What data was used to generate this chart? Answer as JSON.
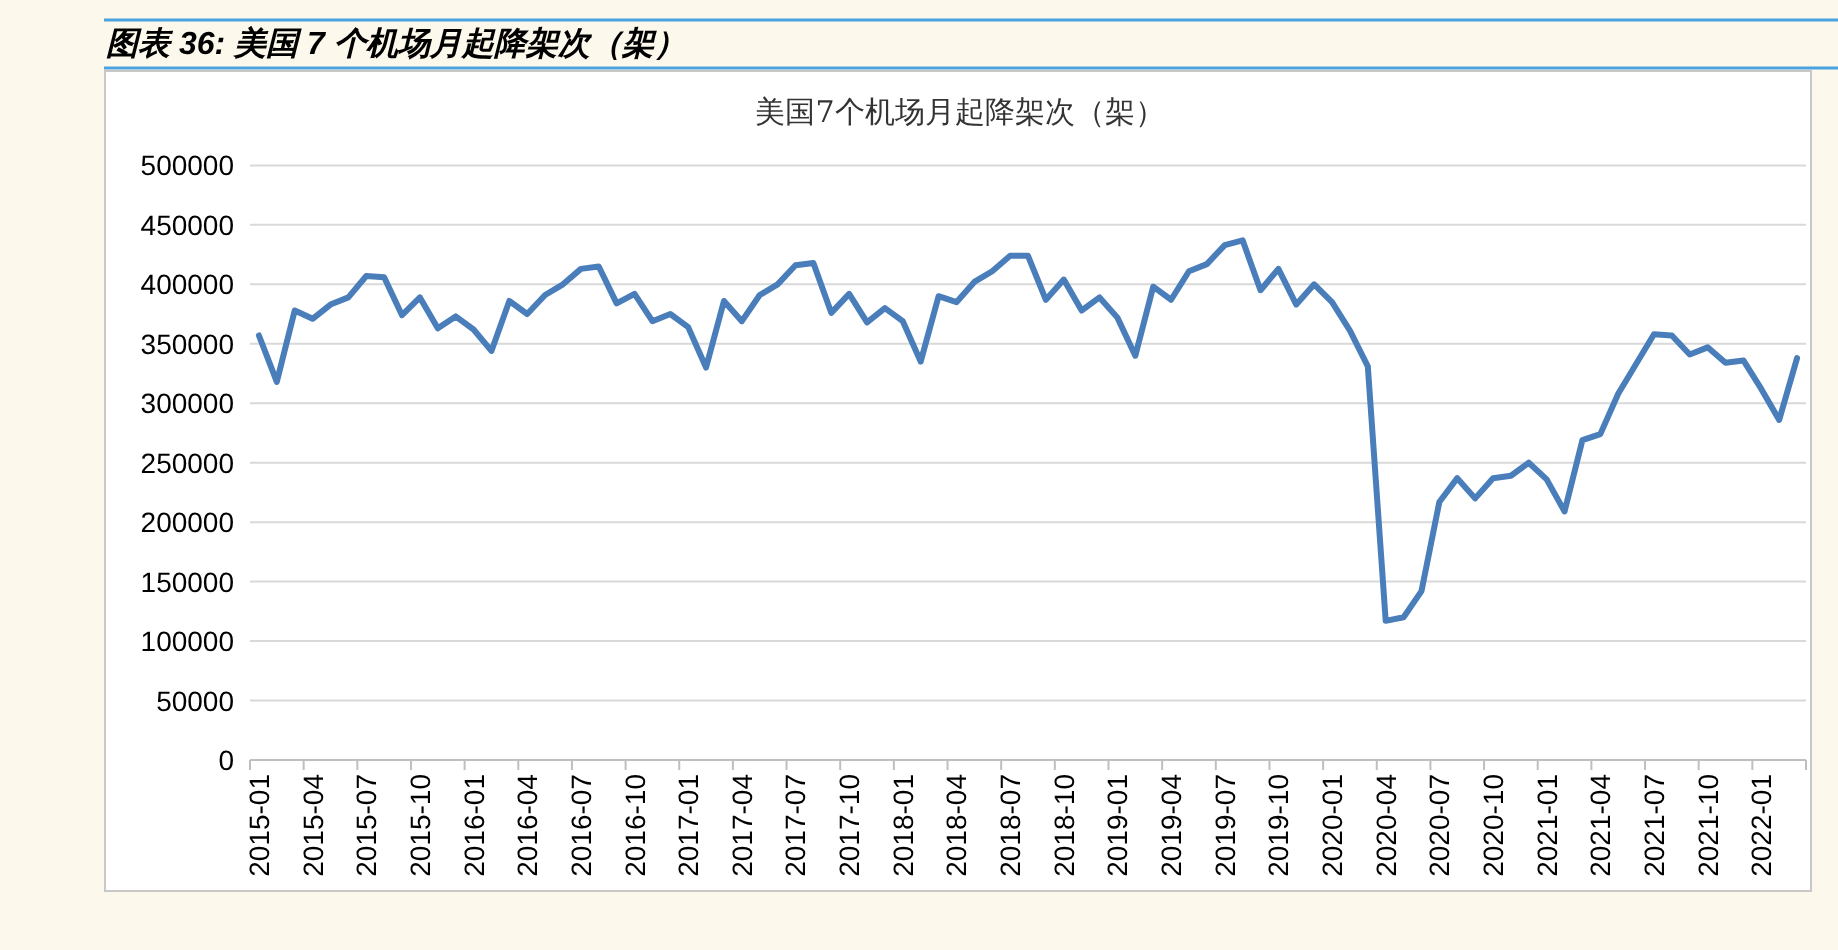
{
  "chart_data": {
    "type": "line",
    "title": "图表 36: 美国 7 个机场月起降架次（架）",
    "subtitle": "美国7个机场月起降架次（架）",
    "categories": [
      "2015-01",
      null,
      null,
      "2015-04",
      null,
      null,
      "2015-07",
      null,
      null,
      "2015-10",
      null,
      null,
      "2016-01",
      null,
      null,
      "2016-04",
      null,
      null,
      "2016-07",
      null,
      null,
      "2016-10",
      null,
      null,
      "2017-01",
      null,
      null,
      "2017-04",
      null,
      null,
      "2017-07",
      null,
      null,
      "2017-10",
      null,
      null,
      "2018-01",
      null,
      null,
      "2018-04",
      null,
      null,
      "2018-07",
      null,
      null,
      "2018-10",
      null,
      null,
      "2019-01",
      null,
      null,
      "2019-04",
      null,
      null,
      "2019-07",
      null,
      null,
      "2019-10",
      null,
      null,
      "2020-01",
      null,
      null,
      "2020-04",
      null,
      null,
      "2020-07",
      null,
      null,
      "2020-10",
      null,
      null,
      "2021-01",
      null,
      null,
      "2021-04",
      null,
      null,
      "2021-07",
      null,
      null,
      "2021-10",
      null,
      null,
      "2022-01",
      null,
      null
    ],
    "series": [
      {
        "color": "#4a7ebb",
        "values": [
          357000,
          318000,
          378000,
          371000,
          383000,
          389000,
          407000,
          406000,
          374000,
          389000,
          363000,
          373000,
          362000,
          344000,
          386000,
          375000,
          391000,
          400000,
          413000,
          415000,
          384000,
          392000,
          369000,
          375000,
          364000,
          330000,
          386000,
          369000,
          391000,
          400000,
          416000,
          418000,
          376000,
          392000,
          368000,
          380000,
          369000,
          335000,
          390000,
          385000,
          402000,
          411000,
          424000,
          424000,
          387000,
          404000,
          378000,
          389000,
          372000,
          340000,
          398000,
          387000,
          411000,
          417000,
          433000,
          437000,
          395000,
          413000,
          383000,
          400000,
          385000,
          361000,
          331000,
          117000,
          120000,
          142000,
          217000,
          237000,
          220000,
          237000,
          239000,
          250000,
          236000,
          209000,
          269000,
          274000,
          308000,
          333000,
          358000,
          357000,
          341000,
          347000,
          334000,
          336000,
          312000,
          286000,
          338000
        ]
      }
    ],
    "ylim": [
      0,
      500000
    ],
    "yticks": [
      0,
      50000,
      100000,
      150000,
      200000,
      250000,
      300000,
      350000,
      400000,
      450000,
      500000
    ],
    "grid": "y",
    "marker": "none",
    "line_style": "solid"
  }
}
